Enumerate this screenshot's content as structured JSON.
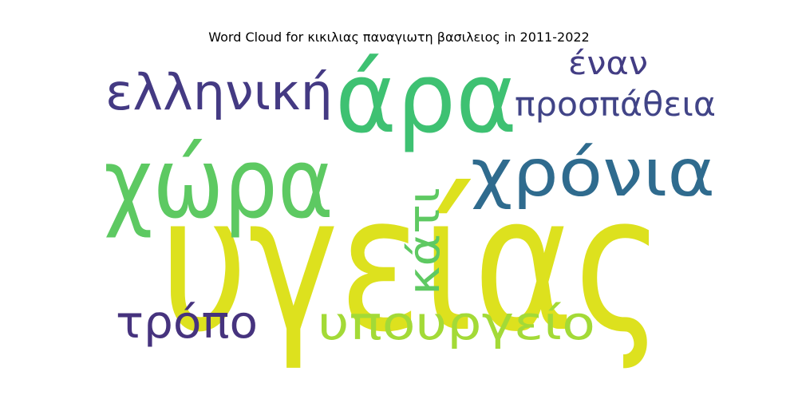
{
  "chart_data": {
    "type": "wordcloud",
    "title": "Word Cloud for κικιλιας παναγιωτη βασιλειος in 2011-2022",
    "words": [
      {
        "text": "υγείας",
        "weight": 1.0,
        "color": "#dde11e"
      },
      {
        "text": "χώρα",
        "weight": 0.68,
        "color": "#5dc962"
      },
      {
        "text": "άρα",
        "weight": 0.62,
        "color": "#3ec172"
      },
      {
        "text": "χρόνια",
        "weight": 0.4,
        "color": "#2f6b8e"
      },
      {
        "text": "ελληνική",
        "weight": 0.3,
        "color": "#443a83"
      },
      {
        "text": "υπουργείο",
        "weight": 0.29,
        "color": "#a3da37"
      },
      {
        "text": "τρόπο",
        "weight": 0.27,
        "color": "#46337e"
      },
      {
        "text": "κάτι",
        "weight": 0.26,
        "color": "#5ec962"
      },
      {
        "text": "προσπάθεια",
        "weight": 0.22,
        "color": "#414487"
      },
      {
        "text": "έναν",
        "weight": 0.2,
        "color": "#433d84"
      }
    ]
  }
}
